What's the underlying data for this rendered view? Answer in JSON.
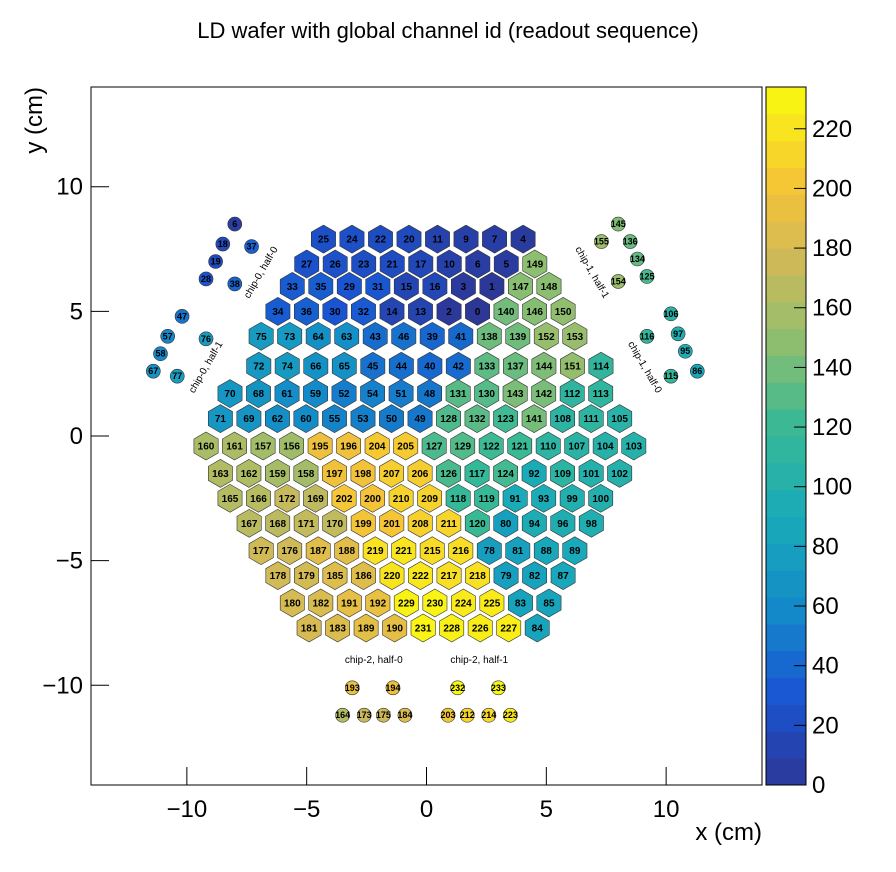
{
  "chart_data": {
    "type": "heatmap",
    "title": "LD wafer with global channel id (readout sequence)",
    "xlabel": "x (cm)",
    "ylabel": "y (cm)",
    "xlim": [
      -14,
      14
    ],
    "ylim": [
      -14,
      14
    ],
    "x_ticks": [
      {
        "value": -10,
        "label": "−10"
      },
      {
        "value": -5,
        "label": "−5"
      },
      {
        "value": 0,
        "label": "0"
      },
      {
        "value": 5,
        "label": "5"
      },
      {
        "value": 10,
        "label": "10"
      }
    ],
    "y_ticks": [
      {
        "value": 10,
        "label": "10"
      },
      {
        "value": 5,
        "label": "5"
      },
      {
        "value": 0,
        "label": "0"
      },
      {
        "value": -5,
        "label": "−5"
      },
      {
        "value": -10,
        "label": "−10"
      }
    ],
    "colorbar": {
      "min": 0,
      "max": 234,
      "ticks": [
        0,
        20,
        40,
        60,
        80,
        100,
        120,
        140,
        160,
        180,
        200,
        220
      ]
    },
    "cell_rows": [
      {
        "y": 7.9,
        "x0": -4.3,
        "ids": [
          25,
          24,
          22,
          20,
          11,
          9,
          7,
          4
        ]
      },
      {
        "y": 6.9,
        "x0": -5.0,
        "ids": [
          27,
          26,
          23,
          21,
          17,
          10,
          6,
          5,
          149
        ]
      },
      {
        "y": 6.0,
        "x0": -5.6,
        "ids": [
          33,
          35,
          29,
          31,
          15,
          16,
          3,
          1,
          147,
          148
        ]
      },
      {
        "y": 5.0,
        "x0": -6.2,
        "ids": [
          34,
          36,
          30,
          32,
          14,
          13,
          2,
          0,
          140,
          146,
          150
        ]
      },
      {
        "y": 4.0,
        "x0": -6.9,
        "ids": [
          75,
          73,
          64,
          63,
          43,
          46,
          39,
          41,
          138,
          139,
          152,
          153
        ]
      },
      {
        "y": 2.8,
        "x0": -7.0,
        "ids": [
          72,
          74,
          66,
          65,
          45,
          44,
          40,
          42,
          133,
          137,
          144,
          151,
          114
        ]
      },
      {
        "y": 1.7,
        "x0": -8.2,
        "ids": [
          70,
          68,
          61,
          59,
          52,
          54,
          51,
          48,
          131,
          130,
          143,
          142,
          112,
          113
        ]
      },
      {
        "y": 0.7,
        "x0": -8.6,
        "ids": [
          71,
          69,
          62,
          60,
          55,
          53,
          50,
          49,
          128,
          132,
          123,
          141,
          108,
          111,
          105
        ]
      },
      {
        "y": -0.4,
        "x0": -9.2,
        "ids": [
          160,
          161,
          157,
          156,
          195,
          196,
          204,
          205,
          127,
          129,
          122,
          121,
          110,
          107,
          104,
          103
        ]
      },
      {
        "y": -1.5,
        "x0": -8.6,
        "ids": [
          163,
          162,
          159,
          158,
          197,
          198,
          207,
          206,
          126,
          117,
          124,
          92,
          109,
          101,
          102
        ]
      },
      {
        "y": -2.5,
        "x0": -8.2,
        "ids": [
          165,
          166,
          172,
          169,
          202,
          200,
          210,
          209,
          118,
          119,
          91,
          93,
          99,
          100
        ]
      },
      {
        "y": -3.5,
        "x0": -7.4,
        "ids": [
          167,
          168,
          171,
          170,
          199,
          201,
          208,
          211,
          120,
          80,
          94,
          96,
          98
        ]
      },
      {
        "y": -4.6,
        "x0": -6.9,
        "ids": [
          177,
          176,
          187,
          188,
          219,
          221,
          215,
          216,
          78,
          81,
          88,
          89
        ]
      },
      {
        "y": -5.6,
        "x0": -6.2,
        "ids": [
          178,
          179,
          185,
          186,
          220,
          222,
          217,
          218,
          79,
          82,
          87
        ]
      },
      {
        "y": -6.7,
        "x0": -5.6,
        "ids": [
          180,
          182,
          191,
          192,
          229,
          230,
          224,
          225,
          83,
          85
        ]
      },
      {
        "y": -7.7,
        "x0": -4.9,
        "ids": [
          181,
          183,
          189,
          190,
          231,
          228,
          226,
          227,
          84
        ]
      }
    ],
    "calib_cells": [
      {
        "id": 6,
        "x": -8.0,
        "y": 8.5
      },
      {
        "id": 18,
        "x": -8.5,
        "y": 7.7
      },
      {
        "id": 37,
        "x": -7.3,
        "y": 7.6
      },
      {
        "id": 19,
        "x": -8.8,
        "y": 7.0
      },
      {
        "id": 28,
        "x": -9.2,
        "y": 6.3
      },
      {
        "id": 38,
        "x": -8.0,
        "y": 6.1
      },
      {
        "id": 47,
        "x": -10.2,
        "y": 4.8
      },
      {
        "id": 76,
        "x": -9.2,
        "y": 3.9
      },
      {
        "id": 57,
        "x": -10.8,
        "y": 4.0
      },
      {
        "id": 58,
        "x": -11.1,
        "y": 3.3
      },
      {
        "id": 67,
        "x": -11.4,
        "y": 2.6
      },
      {
        "id": 77,
        "x": -10.4,
        "y": 2.4
      },
      {
        "id": 145,
        "x": 8.0,
        "y": 8.5
      },
      {
        "id": 155,
        "x": 7.3,
        "y": 7.8
      },
      {
        "id": 136,
        "x": 8.5,
        "y": 7.8
      },
      {
        "id": 134,
        "x": 8.8,
        "y": 7.1
      },
      {
        "id": 125,
        "x": 9.2,
        "y": 6.4
      },
      {
        "id": 154,
        "x": 8.0,
        "y": 6.2
      },
      {
        "id": 106,
        "x": 10.2,
        "y": 4.9
      },
      {
        "id": 116,
        "x": 9.2,
        "y": 4.0
      },
      {
        "id": 97,
        "x": 10.5,
        "y": 4.1
      },
      {
        "id": 95,
        "x": 10.8,
        "y": 3.4
      },
      {
        "id": 115,
        "x": 10.2,
        "y": 2.4
      },
      {
        "id": 86,
        "x": 11.3,
        "y": 2.6
      },
      {
        "id": 193,
        "x": -3.1,
        "y": -10.1
      },
      {
        "id": 194,
        "x": -1.4,
        "y": -10.1
      },
      {
        "id": 232,
        "x": 1.3,
        "y": -10.1
      },
      {
        "id": 233,
        "x": 3.0,
        "y": -10.1
      },
      {
        "id": 164,
        "x": -3.5,
        "y": -11.2
      },
      {
        "id": 173,
        "x": -2.6,
        "y": -11.2
      },
      {
        "id": 175,
        "x": -1.8,
        "y": -11.2
      },
      {
        "id": 184,
        "x": -0.9,
        "y": -11.2
      },
      {
        "id": 203,
        "x": 0.9,
        "y": -11.2
      },
      {
        "id": 212,
        "x": 1.7,
        "y": -11.2
      },
      {
        "id": 214,
        "x": 2.6,
        "y": -11.2
      },
      {
        "id": 223,
        "x": 3.5,
        "y": -11.2
      }
    ],
    "region_labels": [
      {
        "text": "chip-0, half-0",
        "x": -6.8,
        "y": 6.5,
        "angle": -60
      },
      {
        "text": "chip-0, half-1",
        "x": -9.1,
        "y": 2.7,
        "angle": -60
      },
      {
        "text": "chip-1, half-1",
        "x": 6.8,
        "y": 6.5,
        "angle": 60
      },
      {
        "text": "chip-1, half-0",
        "x": 9.0,
        "y": 2.7,
        "angle": 60
      },
      {
        "text": "chip-2, half-0",
        "x": -2.2,
        "y": -9.1,
        "angle": 0
      },
      {
        "text": "chip-2, half-1",
        "x": 2.2,
        "y": -9.1,
        "angle": 0
      }
    ]
  }
}
